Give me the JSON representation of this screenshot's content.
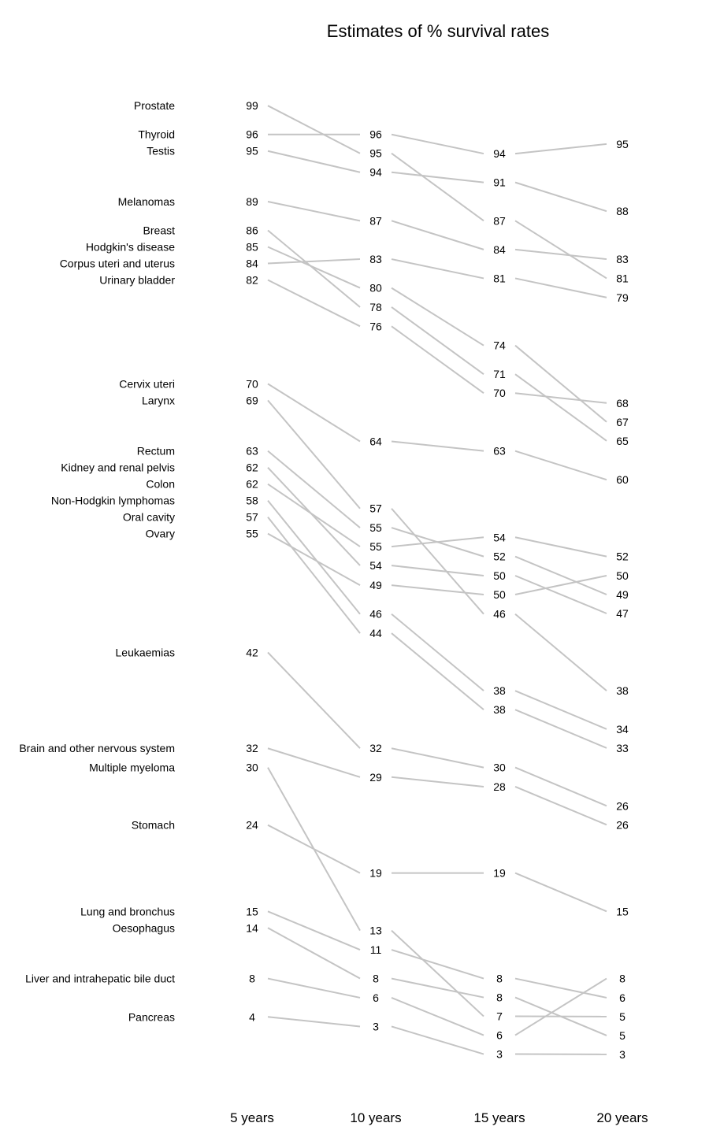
{
  "chart_data": {
    "type": "line",
    "title": "Estimates of % survival rates",
    "x": [
      "5 years",
      "10 years",
      "15 years",
      "20 years"
    ],
    "ylim": [
      0,
      100
    ],
    "grid": false,
    "legend": "none",
    "line_color": "#c4c4c4",
    "series": [
      {
        "name": "Prostate",
        "values": [
          99,
          95,
          87,
          81
        ]
      },
      {
        "name": "Thyroid",
        "values": [
          96,
          96,
          94,
          95
        ]
      },
      {
        "name": "Testis",
        "values": [
          95,
          94,
          91,
          88
        ]
      },
      {
        "name": "Melanomas",
        "values": [
          89,
          87,
          84,
          83
        ]
      },
      {
        "name": "Breast",
        "values": [
          86,
          78,
          71,
          65
        ]
      },
      {
        "name": "Hodgkin's disease",
        "values": [
          85,
          80,
          74,
          67
        ]
      },
      {
        "name": "Corpus uteri and uterus",
        "values": [
          84,
          83,
          81,
          79
        ]
      },
      {
        "name": "Urinary bladder",
        "values": [
          82,
          76,
          70,
          68
        ]
      },
      {
        "name": "Cervix uteri",
        "values": [
          70,
          64,
          63,
          60
        ]
      },
      {
        "name": "Larynx",
        "values": [
          69,
          57,
          46,
          38
        ]
      },
      {
        "name": "Rectum",
        "values": [
          63,
          55,
          52,
          49
        ]
      },
      {
        "name": "Kidney and renal pelvis",
        "values": [
          62,
          54,
          50,
          47
        ]
      },
      {
        "name": "Colon",
        "values": [
          62,
          55,
          54,
          52
        ]
      },
      {
        "name": "Non-Hodgkin lymphomas",
        "values": [
          58,
          46,
          38,
          34
        ]
      },
      {
        "name": "Oral cavity",
        "values": [
          57,
          44,
          38,
          33
        ]
      },
      {
        "name": "Ovary",
        "values": [
          55,
          49,
          50,
          50
        ]
      },
      {
        "name": "Leukaemias",
        "values": [
          42,
          32,
          30,
          26
        ]
      },
      {
        "name": "Brain and other nervous system",
        "values": [
          32,
          29,
          28,
          26
        ]
      },
      {
        "name": "Multiple myeloma",
        "values": [
          30,
          13,
          7,
          5
        ]
      },
      {
        "name": "Stomach",
        "values": [
          24,
          19,
          19,
          15
        ]
      },
      {
        "name": "Lung and bronchus",
        "values": [
          15,
          11,
          8,
          6
        ]
      },
      {
        "name": "Oesophagus",
        "values": [
          14,
          8,
          8,
          5
        ]
      },
      {
        "name": "Liver and intrahepatic bile duct",
        "values": [
          8,
          6,
          6,
          8
        ]
      },
      {
        "name": "Pancreas",
        "values": [
          4,
          3,
          3,
          3
        ]
      }
    ]
  }
}
